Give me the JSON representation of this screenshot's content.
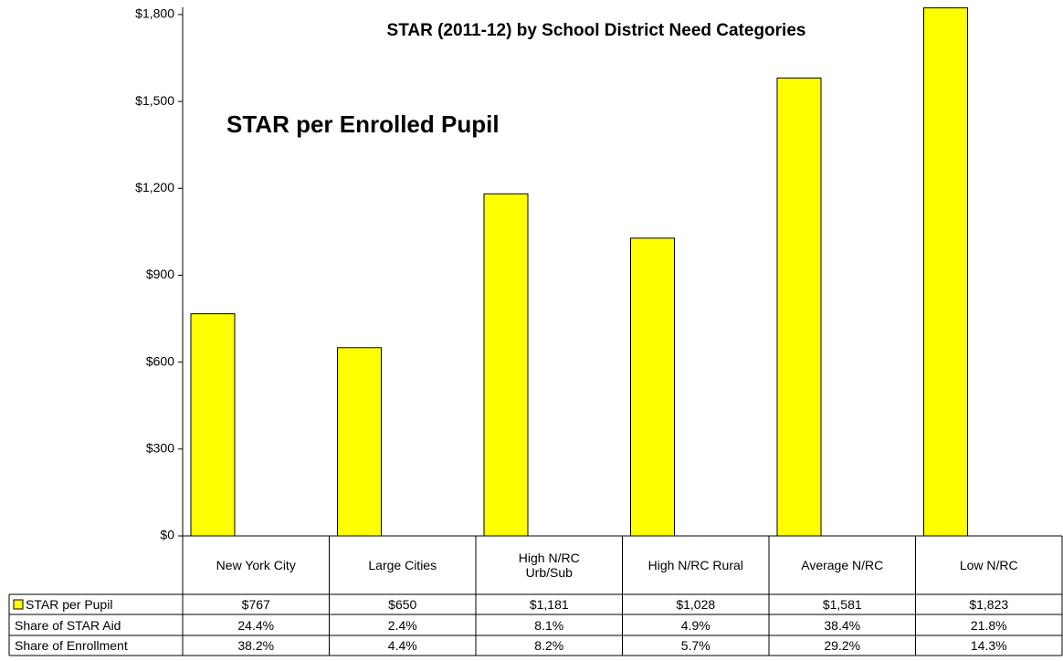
{
  "chart_data": {
    "type": "bar",
    "title": "STAR (2011-12) by School District Need Categories",
    "subtitle": "STAR per Enrolled Pupil",
    "categories": [
      "New York City",
      "Large Cities",
      "High N/RC\nUrb/Sub",
      "High N/RC Rural",
      "Average N/RC",
      "Low N/RC"
    ],
    "series": [
      {
        "name": "STAR per Pupil",
        "color": "#ffff00",
        "values": [
          767,
          650,
          1181,
          1028,
          1581,
          1823
        ],
        "value_labels": [
          "$767",
          "$650",
          "$1,181",
          "$1,028",
          "$1,581",
          "$1,823"
        ]
      }
    ],
    "table_rows": [
      {
        "name": "Share of STAR Aid",
        "values": [
          24.4,
          2.4,
          8.1,
          4.9,
          38.4,
          21.8
        ],
        "value_labels": [
          "24.4%",
          "2.4%",
          "8.1%",
          "4.9%",
          "38.4%",
          "21.8%"
        ]
      },
      {
        "name": "Share of Enrollment",
        "values": [
          38.2,
          4.4,
          8.2,
          5.7,
          29.2,
          14.3
        ],
        "value_labels": [
          "38.2%",
          "4.4%",
          "8.2%",
          "5.7%",
          "29.2%",
          "14.3%"
        ]
      }
    ],
    "ylim": [
      0,
      1825
    ],
    "yticks": [
      {
        "value": 0,
        "label": "$0"
      },
      {
        "value": 300,
        "label": "$300"
      },
      {
        "value": 600,
        "label": "$600"
      },
      {
        "value": 900,
        "label": "$900"
      },
      {
        "value": 1200,
        "label": "$1,200"
      },
      {
        "value": 1500,
        "label": "$1,500"
      },
      {
        "value": 1800,
        "label": "$1,800"
      }
    ]
  }
}
